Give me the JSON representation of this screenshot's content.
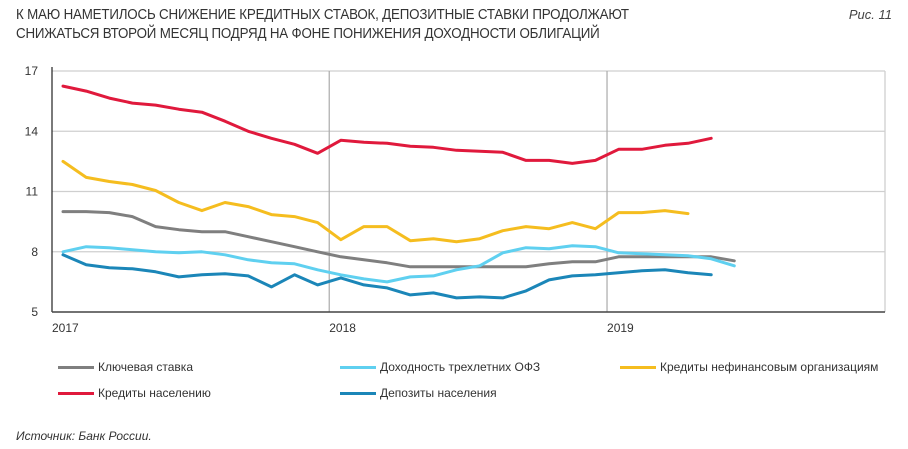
{
  "header": {
    "title_line1": "К МАЮ НАМЕТИЛОСЬ СНИЖЕНИЕ КРЕДИТНЫХ СТАВОК, ДЕПОЗИТНЫЕ СТАВКИ ПРОДОЛЖАЮТ",
    "title_line2": "СНИЖАТЬСЯ ВТОРОЙ МЕСЯЦ ПОДРЯД НА ФОНЕ ПОНИЖЕНИЯ ДОХОДНОСТИ ОБЛИГАЦИЙ",
    "figure_label": "Рис. 11"
  },
  "footer": {
    "source": "Источник: Банк России."
  },
  "chart_data": {
    "type": "line",
    "title": "К МАЮ НАМЕТИЛОСЬ СНИЖЕНИЕ КРЕДИТНЫХ СТАВОК, ДЕПОЗИТНЫЕ СТАВКИ ПРОДОЛЖАЮТ СНИЖАТЬСЯ ВТОРОЙ МЕСЯЦ ПОДРЯД НА ФОНЕ ПОНИЖЕНИЯ ДОХОДНОСТИ ОБЛИГАЦИЙ",
    "xlabel": "",
    "ylabel": "",
    "x_unit": "month index from Jan 2017",
    "x_range": [
      0,
      35.5
    ],
    "x_ticks": [
      {
        "label": "2017",
        "value": 0
      },
      {
        "label": "2018",
        "value": 11.5
      },
      {
        "label": "2019",
        "value": 23.5
      }
    ],
    "y_ticks": [
      5,
      8,
      11,
      14,
      17
    ],
    "ylim": [
      5,
      17
    ],
    "grid": true,
    "legend_position": "bottom",
    "series": [
      {
        "name": "Ключевая ставка",
        "color": "#7f7f7f",
        "values": [
          10.0,
          10.0,
          9.95,
          9.75,
          9.25,
          9.1,
          9.0,
          9.0,
          8.75,
          8.5,
          8.25,
          8.0,
          7.75,
          7.6,
          7.45,
          7.25,
          7.25,
          7.25,
          7.25,
          7.25,
          7.25,
          7.4,
          7.5,
          7.5,
          7.75,
          7.75,
          7.75,
          7.75,
          7.75,
          7.55
        ]
      },
      {
        "name": "Доходность трехлетних ОФЗ",
        "color": "#5fd0f0",
        "values": [
          8.0,
          8.25,
          8.2,
          8.1,
          8.0,
          7.95,
          8.0,
          7.85,
          7.6,
          7.45,
          7.4,
          7.1,
          6.85,
          6.65,
          6.5,
          6.75,
          6.8,
          7.1,
          7.3,
          7.95,
          8.2,
          8.15,
          8.3,
          8.25,
          7.95,
          7.9,
          7.85,
          7.8,
          7.65,
          7.3
        ]
      },
      {
        "name": "Кредиты нефинансовым организациям",
        "color": "#f5bd1f",
        "values": [
          12.5,
          11.7,
          11.5,
          11.35,
          11.05,
          10.45,
          10.05,
          10.45,
          10.25,
          9.85,
          9.75,
          9.45,
          8.6,
          9.25,
          9.25,
          8.55,
          8.65,
          8.5,
          8.65,
          9.05,
          9.25,
          9.15,
          9.45,
          9.15,
          9.95,
          9.95,
          10.05,
          9.9
        ]
      },
      {
        "name": "Кредиты населению",
        "color": "#e0193c",
        "values": [
          16.25,
          16.0,
          15.65,
          15.4,
          15.3,
          15.1,
          14.95,
          14.5,
          14.0,
          13.65,
          13.35,
          12.9,
          13.55,
          13.45,
          13.4,
          13.25,
          13.2,
          13.05,
          13.0,
          12.95,
          12.55,
          12.55,
          12.4,
          12.55,
          13.1,
          13.1,
          13.3,
          13.4,
          13.65
        ]
      },
      {
        "name": "Депозиты населения",
        "color": "#1b86b8",
        "values": [
          7.85,
          7.35,
          7.2,
          7.15,
          7.0,
          6.75,
          6.85,
          6.9,
          6.8,
          6.25,
          6.85,
          6.35,
          6.7,
          6.35,
          6.2,
          5.85,
          5.95,
          5.7,
          5.75,
          5.7,
          6.05,
          6.6,
          6.8,
          6.85,
          6.95,
          7.05,
          7.1,
          6.95,
          6.85
        ]
      }
    ]
  }
}
